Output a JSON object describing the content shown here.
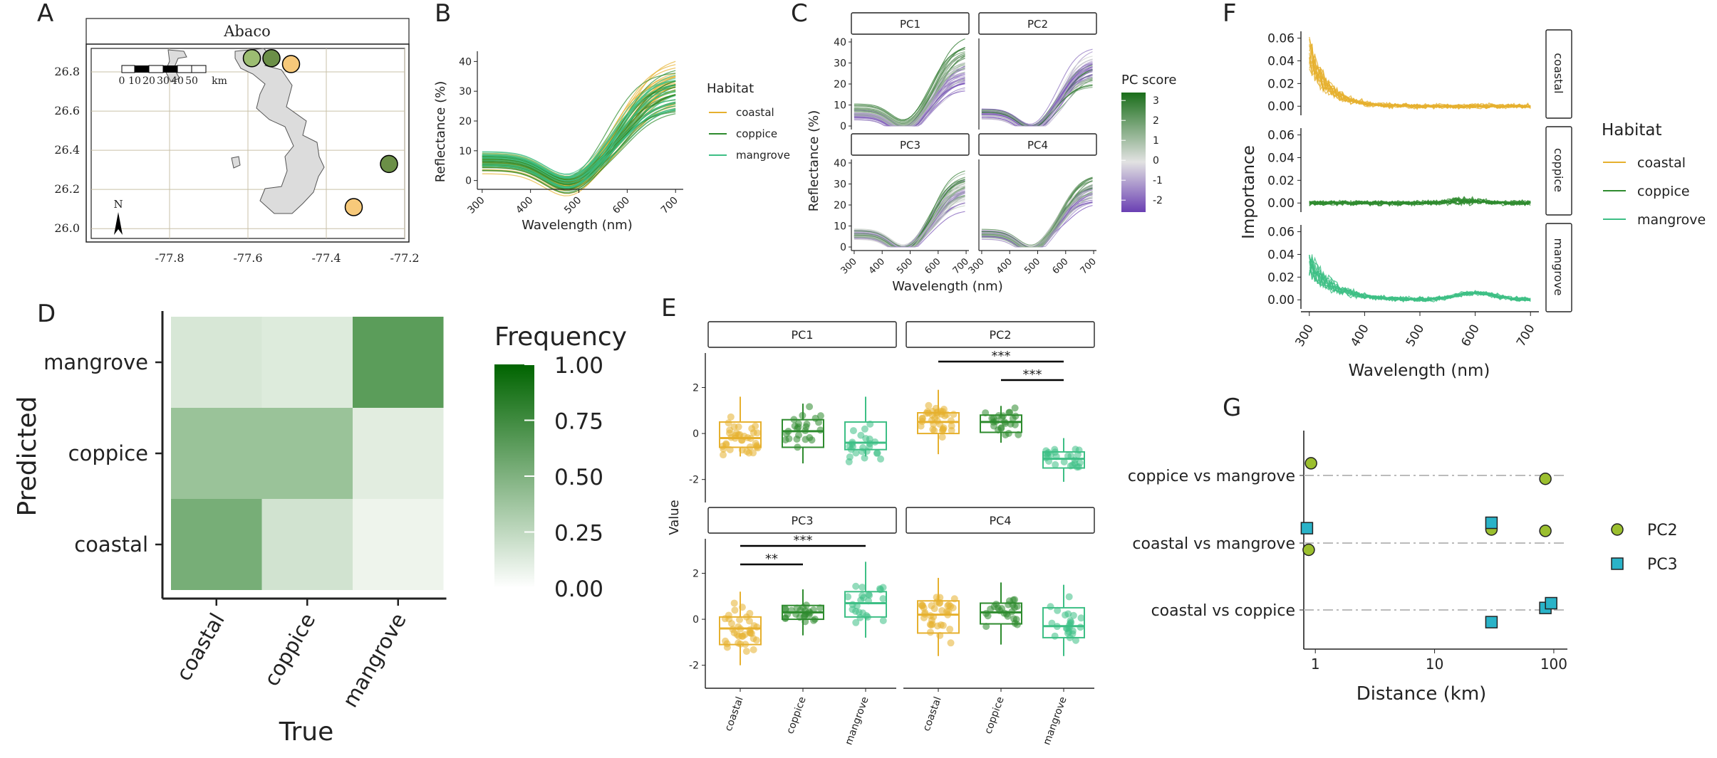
{
  "panel_letters": [
    "A",
    "B",
    "C",
    "D",
    "E",
    "F",
    "G"
  ],
  "colors": {
    "coastal": "#e6b02e",
    "coppice": "#2e8b2e",
    "mangrove": "#3dbf85",
    "pc_high": "#1a6e1a",
    "pc_low": "#6a3fb3",
    "heat_max": "#006400",
    "pc2_point": "#9bbf2e",
    "pc3_point": "#2ab3c8"
  },
  "chart_data": [
    {
      "panel": "A",
      "type": "map",
      "title": "Abaco",
      "scale_labels": [
        "0",
        "10",
        "20",
        "30",
        "40",
        "50",
        "km"
      ],
      "north_label": "N",
      "x_ticks": [
        "-77.8",
        "-77.6",
        "-77.4",
        "-77.2"
      ],
      "y_ticks": [
        "26.0",
        "26.2",
        "26.4",
        "26.6",
        "26.8"
      ],
      "sites": [
        {
          "lon": -77.59,
          "lat": 26.87,
          "habitat": "coppice"
        },
        {
          "lon": -77.54,
          "lat": 26.87,
          "habitat": "coppice"
        },
        {
          "lon": -77.49,
          "lat": 26.84,
          "habitat": "coastal"
        },
        {
          "lon": -77.24,
          "lat": 26.33,
          "habitat": "coppice"
        },
        {
          "lon": -77.33,
          "lat": 26.11,
          "habitat": "coastal"
        }
      ]
    },
    {
      "panel": "B",
      "type": "line",
      "xlabel": "Wavelength (nm)",
      "ylabel": "Reflectance (%)",
      "x_ticks": [
        300,
        400,
        500,
        600,
        700
      ],
      "y_ticks": [
        0,
        10,
        20,
        30,
        40
      ],
      "xlim": [
        290,
        710
      ],
      "ylim": [
        -2,
        42
      ],
      "legend_title": "Habitat",
      "legend": [
        "coastal",
        "coppice",
        "mangrove"
      ],
      "legend_position": "right"
    },
    {
      "panel": "C",
      "type": "line",
      "facets": [
        "PC1",
        "PC2",
        "PC3",
        "PC4"
      ],
      "xlabel": "Wavelength (nm)",
      "ylabel": "Reflectance (%)",
      "x_ticks": [
        300,
        400,
        500,
        600,
        700
      ],
      "y_ticks": [
        0,
        10,
        20,
        30,
        40
      ],
      "xlim": [
        290,
        710
      ],
      "ylim": [
        -1,
        41
      ],
      "colorbar_title": "PC score",
      "colorbar_ticks": [
        "3",
        "2",
        "1",
        "0",
        "-1",
        "-2"
      ],
      "colorbar_range": [
        -2.6,
        3.4
      ]
    },
    {
      "panel": "D",
      "type": "heatmap",
      "xlabel": "True",
      "ylabel": "Predicted",
      "x_categories": [
        "coastal",
        "coppice",
        "mangrove"
      ],
      "y_categories": [
        "coastal",
        "coppice",
        "mangrove"
      ],
      "values": [
        [
          0.62,
          0.18,
          0.04
        ],
        [
          0.45,
          0.45,
          0.1
        ],
        [
          0.15,
          0.12,
          0.76
        ]
      ],
      "legend_title": "Frequency",
      "legend_ticks": [
        "1.00",
        "0.75",
        "0.50",
        "0.25",
        "0.00"
      ]
    },
    {
      "panel": "E",
      "type": "box",
      "facets": [
        "PC1",
        "PC2",
        "PC3",
        "PC4"
      ],
      "categories": [
        "coastal",
        "coppice",
        "mangrove"
      ],
      "ylabel": "Value",
      "y_ticks": [
        -2,
        0,
        2
      ],
      "ylim": [
        -3,
        3.5
      ],
      "boxes": {
        "PC1": [
          [
            -1.0,
            -0.6,
            -0.2,
            0.5,
            1.6
          ],
          [
            -1.3,
            -0.6,
            0.1,
            0.6,
            1.3
          ],
          [
            -1.0,
            -0.7,
            -0.4,
            0.5,
            1.6
          ]
        ],
        "PC2": [
          [
            -0.9,
            0.0,
            0.5,
            0.9,
            1.9
          ],
          [
            -0.4,
            0.05,
            0.5,
            0.8,
            1.2
          ],
          [
            -2.1,
            -1.5,
            -1.1,
            -0.8,
            -0.2
          ]
        ],
        "PC3": [
          [
            -2.0,
            -1.1,
            -0.4,
            0.1,
            1.2
          ],
          [
            -0.7,
            0.0,
            0.3,
            0.6,
            1.3
          ],
          [
            -0.8,
            0.1,
            0.7,
            1.2,
            2.5
          ]
        ],
        "PC4": [
          [
            -1.6,
            -0.6,
            0.2,
            0.8,
            1.8
          ],
          [
            -1.1,
            -0.2,
            0.3,
            0.7,
            1.6
          ],
          [
            -1.6,
            -0.8,
            -0.3,
            0.5,
            1.5
          ]
        ]
      },
      "significance": [
        {
          "facet": "PC2",
          "from": "coastal",
          "to": "mangrove",
          "label": "***"
        },
        {
          "facet": "PC2",
          "from": "coppice",
          "to": "mangrove",
          "label": "***"
        },
        {
          "facet": "PC3",
          "from": "coastal",
          "to": "mangrove",
          "label": "***"
        },
        {
          "facet": "PC3",
          "from": "coastal",
          "to": "coppice",
          "label": "**"
        }
      ]
    },
    {
      "panel": "F",
      "type": "line",
      "facets": [
        "coastal",
        "coppice",
        "mangrove"
      ],
      "xlabel": "Wavelength (nm)",
      "ylabel": "Importance",
      "x_ticks": [
        300,
        400,
        500,
        600,
        700
      ],
      "y_ticks": [
        "0.00",
        "0.02",
        "0.04",
        "0.06"
      ],
      "xlim": [
        290,
        710
      ],
      "ylim": [
        -0.008,
        0.066
      ],
      "legend_title": "Habitat",
      "legend": [
        "coastal",
        "coppice",
        "mangrove"
      ]
    },
    {
      "panel": "G",
      "type": "scatter",
      "xlabel": "Distance (km)",
      "x_scale": "log",
      "x_ticks": [
        "1",
        "10",
        "100"
      ],
      "xlim": [
        0.8,
        130
      ],
      "categories": [
        "coppice vs mangrove",
        "coastal vs mangrove",
        "coastal vs coppice"
      ],
      "series": [
        {
          "name": "PC2",
          "shape": "circle",
          "points": [
            {
              "cat": "coppice vs mangrove",
              "x": 0.92,
              "dy": 0.18
            },
            {
              "cat": "coppice vs mangrove",
              "x": 85,
              "dy": -0.05
            },
            {
              "cat": "coastal vs mangrove",
              "x": 0.88,
              "dy": -0.1
            },
            {
              "cat": "coastal vs mangrove",
              "x": 30,
              "dy": 0.2
            },
            {
              "cat": "coastal vs mangrove",
              "x": 85,
              "dy": 0.18
            }
          ]
        },
        {
          "name": "PC3",
          "shape": "square",
          "points": [
            {
              "cat": "coastal vs mangrove",
              "x": 0.85,
              "dy": 0.22
            },
            {
              "cat": "coastal vs mangrove",
              "x": 30,
              "dy": 0.3
            },
            {
              "cat": "coastal vs coppice",
              "x": 30,
              "dy": -0.18
            },
            {
              "cat": "coastal vs coppice",
              "x": 85,
              "dy": 0.03
            },
            {
              "cat": "coastal vs coppice",
              "x": 95,
              "dy": 0.1
            }
          ]
        }
      ],
      "legend": [
        "PC2",
        "PC3"
      ]
    }
  ]
}
